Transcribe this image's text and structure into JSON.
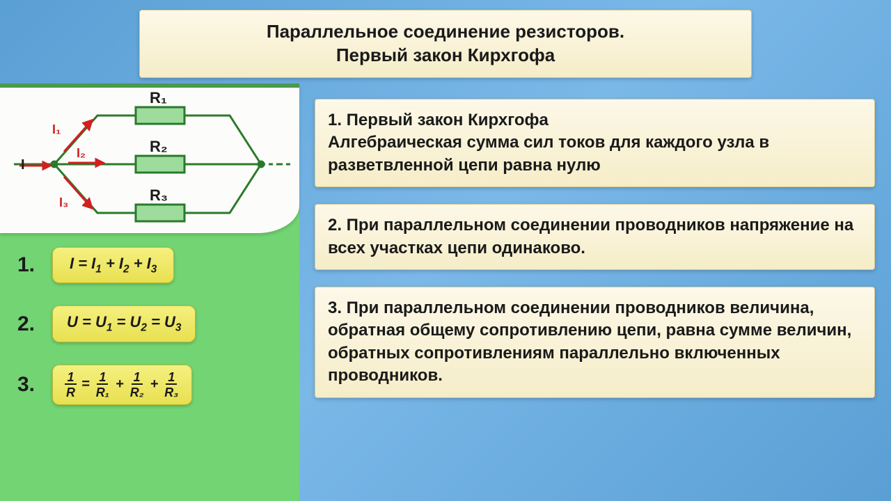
{
  "header": {
    "line1": "Параллельное соединение резисторов.",
    "line2": "Первый закон Кирхгофа"
  },
  "colors": {
    "background_gradient_start": "#5a9fd4",
    "background_gradient_end": "#7ab8e8",
    "panel_green": "#72d472",
    "box_cream_top": "#fdf8e8",
    "box_cream_bottom": "#f5edc8",
    "formula_yellow_top": "#f5f080",
    "formula_yellow_bottom": "#e8e050",
    "wire_green": "#2a7a2a",
    "resistor_fill": "#9edc9e",
    "arrow_red": "#d02020",
    "text_color": "#1a1a1a"
  },
  "circuit": {
    "labels": {
      "I": "I",
      "I1": "I₁",
      "I2": "I₂",
      "I3": "I₃",
      "R1": "R₁",
      "R2": "R₂",
      "R3": "R₃"
    },
    "resistor_fill": "#9edc9e",
    "wire_color": "#2a7a2a",
    "arrow_color": "#d02020",
    "label_fontsize": 20
  },
  "formulas": {
    "num1": "1.",
    "num2": "2.",
    "num3": "3.",
    "f1_html": "I = I<sub>1</sub> + I<sub>2</sub> + I<sub>3</sub>",
    "f2_html": "U = U<sub>1</sub> = U<sub>2</sub> = U<sub>3</sub>",
    "f3_parts": {
      "n1": "1",
      "d1": "R",
      "eq": "=",
      "n2": "1",
      "d2": "R₁",
      "p1": "+",
      "n3": "1",
      "d3": "R₂",
      "p2": "+",
      "n4": "1",
      "d4": "R₃"
    }
  },
  "text_boxes": {
    "box1": {
      "title": "1. Первый закон Кирхгофа",
      "body": "Алгебраическая сумма сил токов для каждого узла в разветвленной цепи равна нулю"
    },
    "box2": {
      "body": "2. При параллельном соединении проводников напряжение на всех участках цепи одинаково."
    },
    "box3": {
      "body": "3. При параллельном соединении проводников величина, обратная общему сопротивлению цепи, равна сумме величин, обратных сопротивлениям параллельно включенных проводников."
    }
  },
  "typography": {
    "header_fontsize": 26,
    "textbox_fontsize": 24,
    "formula_fontsize": 22,
    "formula_num_fontsize": 30,
    "font_family": "Arial"
  }
}
